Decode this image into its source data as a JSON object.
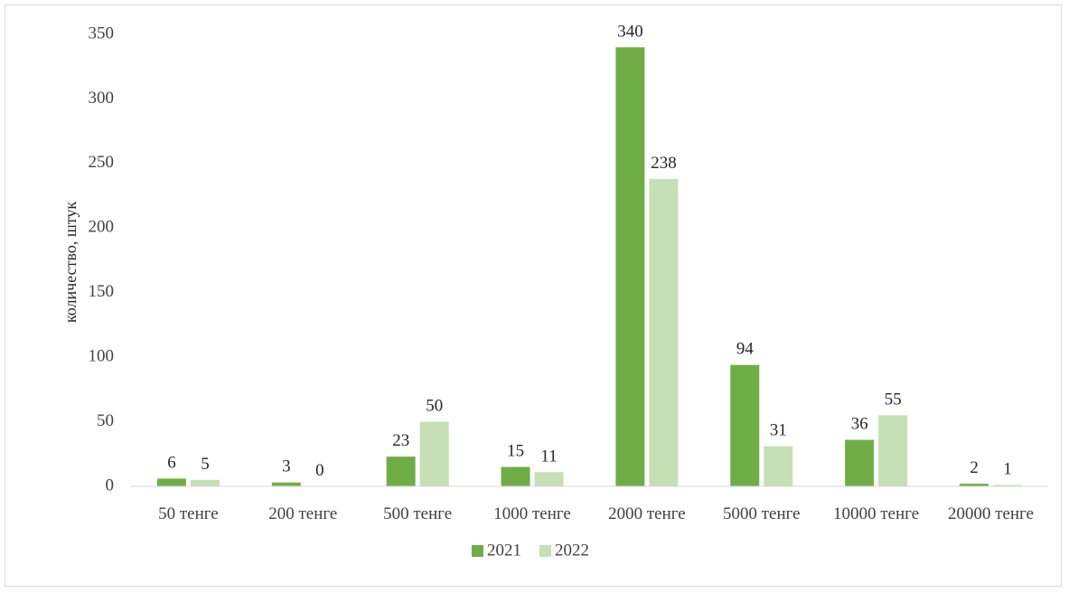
{
  "chart_data": {
    "type": "bar",
    "title": "",
    "xlabel": "",
    "ylabel": "количество, штук",
    "ylim": [
      0,
      350
    ],
    "yticks": [
      0,
      50,
      100,
      150,
      200,
      250,
      300,
      350
    ],
    "grid": false,
    "legend_position": "bottom",
    "categories": [
      "50 тенге",
      "200 тенге",
      "500 тенге",
      "1000 тенге",
      "2000 тенге",
      "5000 тенге",
      "10000 тенге",
      "20000 тенге"
    ],
    "series": [
      {
        "name": "2021",
        "color": "#70ad47",
        "values": [
          6,
          3,
          23,
          15,
          340,
          94,
          36,
          2
        ]
      },
      {
        "name": "2022",
        "color": "#c5e0b4",
        "values": [
          5,
          0,
          50,
          11,
          238,
          31,
          55,
          1
        ]
      }
    ]
  }
}
